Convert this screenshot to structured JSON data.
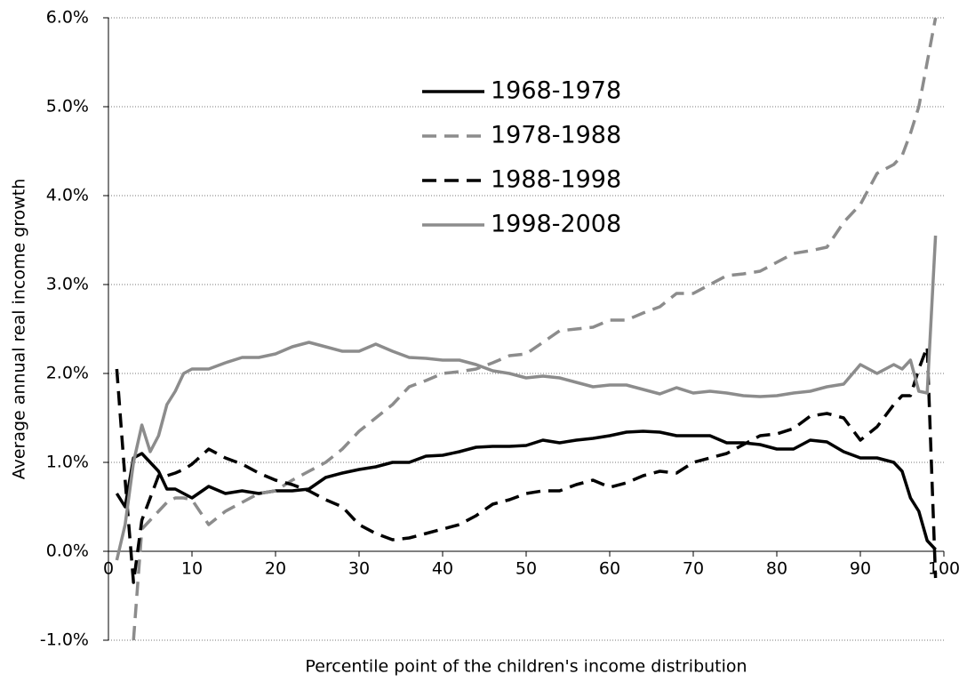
{
  "chart_data": {
    "type": "line",
    "xlabel": "Percentile point of the children's income distribution",
    "ylabel": "Average annual real income growth",
    "x": [
      1,
      2,
      3,
      4,
      5,
      6,
      7,
      8,
      9,
      10,
      12,
      14,
      16,
      18,
      20,
      22,
      24,
      26,
      28,
      30,
      32,
      34,
      36,
      38,
      40,
      42,
      44,
      46,
      48,
      50,
      52,
      54,
      56,
      58,
      60,
      62,
      64,
      66,
      68,
      70,
      72,
      74,
      76,
      78,
      80,
      82,
      84,
      86,
      88,
      90,
      92,
      94,
      95,
      96,
      97,
      98,
      99
    ],
    "series": [
      {
        "name": "1968-1978",
        "color": "#000000",
        "dash": "solid",
        "values": [
          0.65,
          0.5,
          1.05,
          1.1,
          1.0,
          0.9,
          0.7,
          0.7,
          0.65,
          0.6,
          0.73,
          0.65,
          0.68,
          0.65,
          0.68,
          0.68,
          0.7,
          0.83,
          0.88,
          0.92,
          0.95,
          1.0,
          1.0,
          1.07,
          1.08,
          1.12,
          1.17,
          1.18,
          1.18,
          1.19,
          1.25,
          1.22,
          1.25,
          1.27,
          1.3,
          1.34,
          1.35,
          1.34,
          1.3,
          1.3,
          1.3,
          1.22,
          1.22,
          1.2,
          1.15,
          1.15,
          1.25,
          1.23,
          1.12,
          1.05,
          1.05,
          1.0,
          0.9,
          0.6,
          0.45,
          0.12,
          0.02
        ]
      },
      {
        "name": "1978-1988",
        "color": "#8c8c8c",
        "dash": "dashed",
        "values": [
          null,
          null,
          -1.0,
          0.25,
          0.35,
          0.45,
          0.55,
          0.6,
          0.6,
          0.58,
          0.3,
          0.45,
          0.55,
          0.65,
          0.68,
          0.8,
          0.9,
          1.0,
          1.15,
          1.35,
          1.5,
          1.65,
          1.85,
          1.92,
          2.0,
          2.02,
          2.05,
          2.12,
          2.2,
          2.22,
          2.35,
          2.48,
          2.5,
          2.52,
          2.6,
          2.6,
          2.68,
          2.75,
          2.9,
          2.9,
          3.0,
          3.1,
          3.12,
          3.15,
          3.25,
          3.35,
          3.38,
          3.42,
          3.7,
          3.9,
          4.25,
          4.35,
          4.45,
          4.7,
          5.0,
          5.5,
          6.0
        ]
      },
      {
        "name": "1988-1998",
        "color": "#000000",
        "dash": "dashed",
        "values": [
          2.05,
          0.8,
          -0.35,
          0.35,
          0.6,
          0.85,
          0.85,
          0.88,
          0.92,
          0.98,
          1.15,
          1.05,
          0.98,
          0.88,
          0.8,
          0.75,
          0.68,
          0.58,
          0.5,
          0.3,
          0.2,
          0.13,
          0.15,
          0.2,
          0.25,
          0.3,
          0.4,
          0.53,
          0.58,
          0.65,
          0.68,
          0.68,
          0.75,
          0.8,
          0.72,
          0.77,
          0.85,
          0.9,
          0.88,
          1.0,
          1.05,
          1.1,
          1.2,
          1.3,
          1.32,
          1.38,
          1.52,
          1.55,
          1.5,
          1.25,
          1.4,
          1.65,
          1.75,
          1.75,
          2.05,
          2.3,
          -0.3
        ]
      },
      {
        "name": "1998-2008",
        "color": "#8c8c8c",
        "dash": "solid",
        "values": [
          -0.1,
          0.3,
          1.0,
          1.42,
          1.12,
          1.3,
          1.65,
          1.8,
          2.0,
          2.05,
          2.05,
          2.12,
          2.18,
          2.18,
          2.22,
          2.3,
          2.35,
          2.3,
          2.25,
          2.25,
          2.33,
          2.25,
          2.18,
          2.17,
          2.15,
          2.15,
          2.1,
          2.03,
          2.0,
          1.95,
          1.97,
          1.95,
          1.9,
          1.85,
          1.87,
          1.87,
          1.82,
          1.77,
          1.84,
          1.78,
          1.8,
          1.78,
          1.75,
          1.74,
          1.75,
          1.78,
          1.8,
          1.85,
          1.88,
          2.1,
          2.0,
          2.1,
          2.05,
          2.15,
          1.8,
          1.78,
          3.55
        ]
      }
    ],
    "xlim": [
      0,
      100
    ],
    "xticks": [
      0,
      10,
      20,
      30,
      40,
      50,
      60,
      70,
      80,
      90,
      100
    ],
    "ylim": [
      -1,
      6
    ],
    "yticks": [
      {
        "value": -1,
        "label": "-1.0%"
      },
      {
        "value": 0,
        "label": "0.0%"
      },
      {
        "value": 1,
        "label": "1.0%"
      },
      {
        "value": 2,
        "label": "2.0%"
      },
      {
        "value": 3,
        "label": "3.0%"
      },
      {
        "value": 4,
        "label": "4.0%"
      },
      {
        "value": 5,
        "label": "5.0%"
      },
      {
        "value": 6,
        "label": "6.0%"
      }
    ],
    "grid": true,
    "legend": "top"
  }
}
